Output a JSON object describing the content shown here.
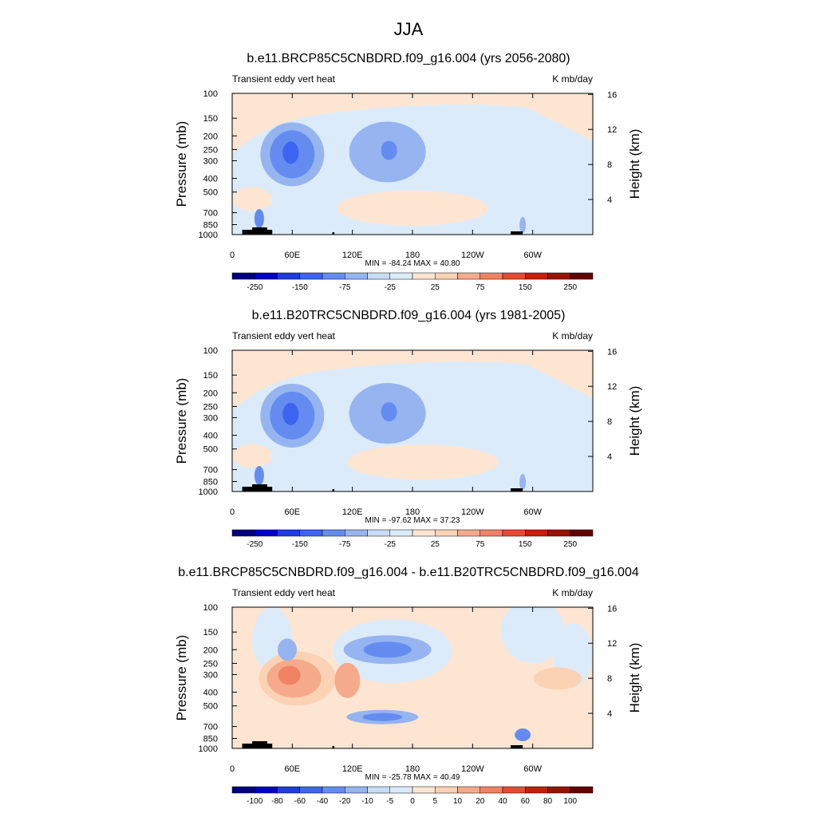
{
  "main_title": "JJA",
  "chart_data": [
    {
      "type": "heatmap",
      "title": "b.e11.BRCP85C5CNBDRD.f09_g16.004 (yrs 2056-2080)",
      "left_subtitle": "Transient eddy vert heat",
      "right_subtitle": "K mb/day",
      "xlabel": "",
      "ylabel": "Pressure (mb)",
      "ylabel_right": "Height (km)",
      "x_ticks": [
        "0",
        "60E",
        "120E",
        "180",
        "120W",
        "60W"
      ],
      "y_ticks": [
        "100",
        "150",
        "200",
        "250",
        "300",
        "400",
        "500",
        "700",
        "850",
        "1000"
      ],
      "y_ticks_right": [
        "16",
        "12",
        "8",
        "4"
      ],
      "stats": "MIN = -84.24  MAX =  40.80",
      "min": -84.24,
      "max": 40.8,
      "colorbar_labels": [
        "-250",
        "-150",
        "-75",
        "-25",
        "25",
        "75",
        "150",
        "250"
      ],
      "features": [
        {
          "lon": 60,
          "p": 270,
          "value": -84
        },
        {
          "lon": 155,
          "p": 260,
          "value": -55
        },
        {
          "lon": 180,
          "p": 650,
          "value": 30
        }
      ]
    },
    {
      "type": "heatmap",
      "title": "b.e11.B20TRC5CNBDRD.f09_g16.004 (yrs 1981-2005)",
      "left_subtitle": "Transient eddy vert heat",
      "right_subtitle": "K mb/day",
      "xlabel": "",
      "ylabel": "Pressure (mb)",
      "ylabel_right": "Height (km)",
      "x_ticks": [
        "0",
        "60E",
        "120E",
        "180",
        "120W",
        "60W"
      ],
      "y_ticks": [
        "100",
        "150",
        "200",
        "250",
        "300",
        "400",
        "500",
        "700",
        "850",
        "1000"
      ],
      "y_ticks_right": [
        "16",
        "12",
        "8",
        "4"
      ],
      "stats": "MIN = -97.62  MAX =  37.23",
      "min": -97.62,
      "max": 37.23,
      "colorbar_labels": [
        "-250",
        "-150",
        "-75",
        "-25",
        "25",
        "75",
        "150",
        "250"
      ],
      "features": [
        {
          "lon": 60,
          "p": 290,
          "value": -97
        },
        {
          "lon": 155,
          "p": 280,
          "value": -45
        },
        {
          "lon": 190,
          "p": 620,
          "value": 25
        }
      ]
    },
    {
      "type": "heatmap",
      "title": "b.e11.BRCP85C5CNBDRD.f09_g16.004 - b.e11.B20TRC5CNBDRD.f09_g16.004",
      "left_subtitle": "Transient eddy vert heat",
      "right_subtitle": "K mb/day",
      "xlabel": "",
      "ylabel": "Pressure (mb)",
      "ylabel_right": "Height (km)",
      "x_ticks": [
        "0",
        "60E",
        "120E",
        "180",
        "120W",
        "60W"
      ],
      "y_ticks": [
        "100",
        "150",
        "200",
        "250",
        "300",
        "400",
        "500",
        "700",
        "850",
        "1000"
      ],
      "y_ticks_right": [
        "16",
        "12",
        "8",
        "4"
      ],
      "stats": "MIN = -25.78  MAX =  40.49",
      "min": -25.78,
      "max": 40.49,
      "colorbar_labels": [
        "-100",
        "-80",
        "-60",
        "-40",
        "-20",
        "-10",
        "-5",
        "0",
        "5",
        "10",
        "20",
        "40",
        "60",
        "80",
        "100"
      ],
      "features": [
        {
          "lon": 65,
          "p": 320,
          "value": 40
        },
        {
          "lon": 155,
          "p": 200,
          "value": -25
        },
        {
          "lon": 150,
          "p": 600,
          "value": -22
        }
      ]
    }
  ],
  "colors": {
    "colorbar_abs": [
      "#000080",
      "#0000c8",
      "#1e3ce0",
      "#3c64f0",
      "#648cf0",
      "#96b4f0",
      "#c8dcf5",
      "#dcebfa",
      "#fde5d2",
      "#fcd2b4",
      "#f5aa8c",
      "#f08264",
      "#e64b32",
      "#c81e0a",
      "#961400",
      "#640000"
    ],
    "colorbar_diff": [
      "#000080",
      "#0000c8",
      "#1e3ce0",
      "#3c64f0",
      "#648cf0",
      "#96b4f0",
      "#c8dcf5",
      "#dcebfa",
      "#fde5d2",
      "#fcd2b4",
      "#f5aa8c",
      "#f08264",
      "#e64b32",
      "#c81e0a",
      "#961400",
      "#640000"
    ],
    "background_pos": "#fde5d2",
    "background_neg": "#dcebfa",
    "terrain": "#000000"
  }
}
